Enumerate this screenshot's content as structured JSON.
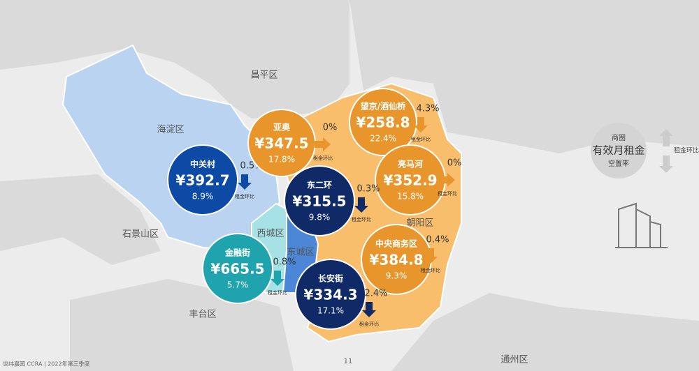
{
  "districts": [
    "昌平区",
    "海淀区",
    "石景山区",
    "丰台区",
    "通州区",
    "西城区",
    "东城区",
    "朝阳区"
  ],
  "markets": [
    {
      "name": "中关村",
      "rent": "¥392.7",
      "vacancy": "8.9%",
      "change": "0.5%",
      "change_label": "租金环比",
      "color": "#0d4aa6",
      "arrow": "down",
      "arrow_color": "#0d4aa6"
    },
    {
      "name": "亚奥",
      "rent": "¥347.5",
      "vacancy": "17.8%",
      "change": "0%",
      "change_label": "租金环比",
      "color": "#e8962c",
      "arrow": "right",
      "arrow_color": "#e8962c"
    },
    {
      "name": "望京/酒仙桥",
      "rent": "¥258.8",
      "vacancy": "22.4%",
      "change": "4.3%",
      "change_label": "租金环比",
      "color": "#e8962c",
      "arrow": "down",
      "arrow_color": "#e8962c"
    },
    {
      "name": "亮马河",
      "rent": "¥352.9",
      "vacancy": "15.8%",
      "change": "0%",
      "change_label": "租金环比",
      "color": "#e8962c",
      "arrow": "right",
      "arrow_color": "#e8962c"
    },
    {
      "name": "东二环",
      "rent": "¥315.5",
      "vacancy": "9.8%",
      "change": "0.3%",
      "change_label": "租金环比",
      "color": "#0f2a66",
      "arrow": "down",
      "arrow_color": "#0f2a66"
    },
    {
      "name": "中央商务区",
      "rent": "¥384.8",
      "vacancy": "9.3%",
      "change": "0.4%",
      "change_label": "租金环比",
      "color": "#e8962c",
      "arrow": "down",
      "arrow_color": "#e8962c"
    },
    {
      "name": "金融街",
      "rent": "¥665.5",
      "vacancy": "5.7%",
      "change": "0.8%",
      "change_label": "租金环比",
      "color": "#1fa3ad",
      "arrow": "down",
      "arrow_color": "#1fa3ad"
    },
    {
      "name": "长安街",
      "rent": "¥334.3",
      "vacancy": "17.1%",
      "change": "2.4%",
      "change_label": "租金环比",
      "color": "#0f2a66",
      "arrow": "down",
      "arrow_color": "#0f2a66"
    }
  ],
  "legend": {
    "name": "商圈",
    "rent": "有效月租金",
    "vacancy": "空置率",
    "change_label": "租金环比"
  },
  "footer": "世纬嘉园 CCRA | 2022年第三季度",
  "page_number": "11"
}
